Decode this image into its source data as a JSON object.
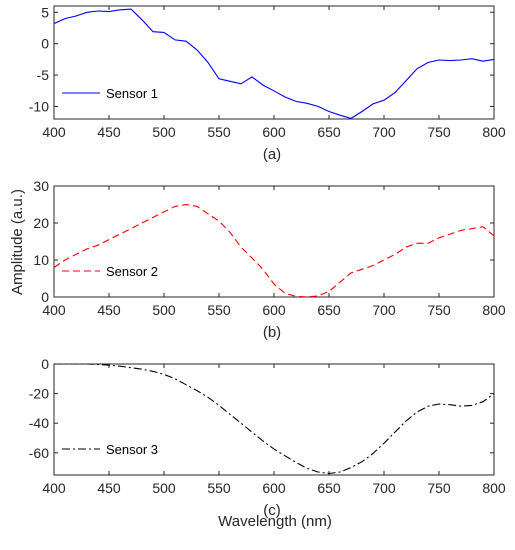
{
  "figure": {
    "ylabel": "Amplitude (a.u.)",
    "xlabel": "Wavelength (nm)"
  },
  "chart_data": [
    {
      "type": "line",
      "caption": "(a)",
      "xlabel": "",
      "ylabel": "",
      "xlim": [
        400,
        800
      ],
      "ylim": [
        -12,
        6
      ],
      "xticks": [
        400,
        450,
        500,
        550,
        600,
        650,
        700,
        750,
        800
      ],
      "yticks": [
        -10,
        -5,
        0,
        5
      ],
      "grid": false,
      "legend_position": "bottom-left",
      "series": [
        {
          "name": "Sensor 1",
          "color": "#0000ff",
          "dash": "solid",
          "x": [
            400,
            410,
            420,
            430,
            440,
            450,
            460,
            470,
            480,
            490,
            500,
            510,
            520,
            530,
            540,
            550,
            560,
            570,
            580,
            590,
            600,
            610,
            620,
            630,
            640,
            650,
            660,
            670,
            680,
            690,
            700,
            710,
            720,
            730,
            740,
            750,
            760,
            770,
            780,
            790,
            800
          ],
          "y": [
            3.2,
            4.0,
            4.4,
            5.0,
            5.2,
            5.1,
            5.4,
            5.5,
            3.8,
            1.9,
            1.8,
            0.6,
            0.4,
            -1.0,
            -3.0,
            -5.6,
            -6.0,
            -6.4,
            -5.3,
            -6.6,
            -7.5,
            -8.5,
            -9.2,
            -9.5,
            -10.0,
            -10.8,
            -11.4,
            -11.9,
            -10.8,
            -9.6,
            -9.0,
            -7.8,
            -5.9,
            -4.0,
            -3.0,
            -2.6,
            -2.7,
            -2.6,
            -2.4,
            -2.8,
            -2.5
          ]
        }
      ]
    },
    {
      "type": "line",
      "caption": "(b)",
      "xlabel": "",
      "ylabel": "",
      "xlim": [
        400,
        800
      ],
      "ylim": [
        0,
        30
      ],
      "xticks": [
        400,
        450,
        500,
        550,
        600,
        650,
        700,
        750,
        800
      ],
      "yticks": [
        0,
        10,
        20,
        30
      ],
      "grid": false,
      "legend_position": "bottom-left",
      "series": [
        {
          "name": "Sensor 2",
          "color": "#ff0000",
          "dash": "dashed",
          "x": [
            400,
            410,
            420,
            430,
            440,
            450,
            460,
            470,
            480,
            490,
            500,
            510,
            520,
            530,
            540,
            550,
            560,
            570,
            580,
            590,
            600,
            610,
            620,
            630,
            640,
            650,
            660,
            670,
            680,
            690,
            700,
            710,
            720,
            730,
            740,
            750,
            760,
            770,
            780,
            790,
            800
          ],
          "y": [
            8.0,
            10.0,
            11.5,
            13.0,
            14.0,
            15.5,
            17.0,
            18.5,
            20.0,
            21.5,
            23.0,
            24.5,
            25.0,
            24.5,
            22.5,
            20.5,
            17.5,
            13.5,
            10.5,
            7.5,
            3.5,
            1.0,
            0.2,
            0.0,
            0.3,
            1.5,
            4.0,
            6.5,
            7.5,
            8.5,
            10.0,
            11.5,
            13.5,
            14.5,
            14.5,
            16.0,
            17.0,
            18.0,
            18.5,
            19.0,
            16.5
          ]
        }
      ]
    },
    {
      "type": "line",
      "caption": "(c)",
      "xlabel": "",
      "ylabel": "",
      "xlim": [
        400,
        800
      ],
      "ylim": [
        -75,
        0
      ],
      "xticks": [
        400,
        450,
        500,
        550,
        600,
        650,
        700,
        750,
        800
      ],
      "yticks": [
        -60,
        -40,
        -20,
        0
      ],
      "grid": false,
      "legend_position": "bottom-left",
      "series": [
        {
          "name": "Sensor 3",
          "color": "#000000",
          "dash": "dash-dot",
          "x": [
            400,
            410,
            420,
            430,
            440,
            450,
            460,
            470,
            480,
            490,
            500,
            510,
            520,
            530,
            540,
            550,
            560,
            570,
            580,
            590,
            600,
            610,
            620,
            630,
            640,
            650,
            660,
            670,
            680,
            690,
            700,
            710,
            720,
            730,
            740,
            750,
            760,
            770,
            780,
            790,
            800
          ],
          "y": [
            0.0,
            0.0,
            0.0,
            0.0,
            -0.3,
            -0.8,
            -1.5,
            -2.5,
            -3.5,
            -5.0,
            -7.0,
            -10.0,
            -14.0,
            -18.0,
            -22.5,
            -28.0,
            -34.0,
            -40.0,
            -46.0,
            -52.0,
            -57.5,
            -62.0,
            -66.5,
            -70.5,
            -73.0,
            -74.0,
            -73.0,
            -70.0,
            -66.0,
            -60.5,
            -53.5,
            -46.0,
            -38.5,
            -32.5,
            -28.5,
            -27.0,
            -27.5,
            -28.5,
            -28.0,
            -25.5,
            -20.0
          ]
        }
      ]
    }
  ]
}
